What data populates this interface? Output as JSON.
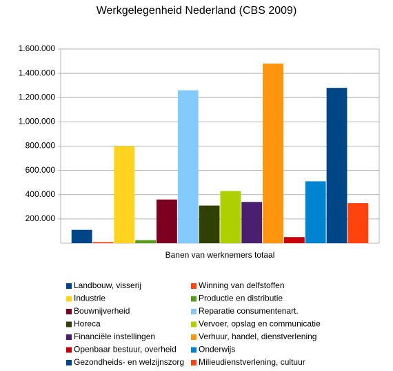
{
  "chart_data": {
    "type": "bar",
    "title": "Werkgelegenheid Nederland (CBS 2009)",
    "categories": [
      "Banen van werknemers totaal"
    ],
    "series": [
      {
        "name": "Landbouw, visserij",
        "color": "#004586",
        "values": [
          110000
        ]
      },
      {
        "name": "Winning van delfstoffen",
        "color": "#ff420e",
        "values": [
          9000
        ]
      },
      {
        "name": "Industrie",
        "color": "#ffd320",
        "values": [
          800000
        ]
      },
      {
        "name": "Productie en distributie",
        "color": "#579d1c",
        "values": [
          25000
        ]
      },
      {
        "name": "Bouwnijverheid",
        "color": "#7e0021",
        "values": [
          360000
        ]
      },
      {
        "name": "Reparatie consumentenart.",
        "color": "#83caff",
        "values": [
          1260000
        ]
      },
      {
        "name": "Horeca",
        "color": "#314004",
        "values": [
          310000
        ]
      },
      {
        "name": "Vervoer, opslag en communicatie",
        "color": "#aecf00",
        "values": [
          430000
        ]
      },
      {
        "name": "Financiële instellingen",
        "color": "#4b1f6f",
        "values": [
          340000
        ]
      },
      {
        "name": "Verhuur, handel, dienstverlening",
        "color": "#ff950e",
        "values": [
          1480000
        ]
      },
      {
        "name": "Openbaar bestuur, overheid",
        "color": "#c5000b",
        "values": [
          50000
        ]
      },
      {
        "name": "Onderwijs",
        "color": "#0084d1",
        "values": [
          510000
        ]
      },
      {
        "name": "Gezondheids- en welzijnszorg",
        "color": "#004586",
        "values": [
          1280000
        ]
      },
      {
        "name": "Milieudienstverlening, cultuur",
        "color": "#ff420e",
        "values": [
          330000
        ]
      }
    ],
    "ylim": [
      0,
      1600000
    ],
    "yticks": [
      {
        "value": 200000,
        "label": "200.000"
      },
      {
        "value": 400000,
        "label": "400.000"
      },
      {
        "value": 600000,
        "label": "600.000"
      },
      {
        "value": 800000,
        "label": "800.000"
      },
      {
        "value": 1000000,
        "label": "1.000.000"
      },
      {
        "value": 1200000,
        "label": "1.200.000"
      },
      {
        "value": 1400000,
        "label": "1.400.000"
      },
      {
        "value": 1600000,
        "label": "1.600.000"
      }
    ],
    "grid": true
  }
}
